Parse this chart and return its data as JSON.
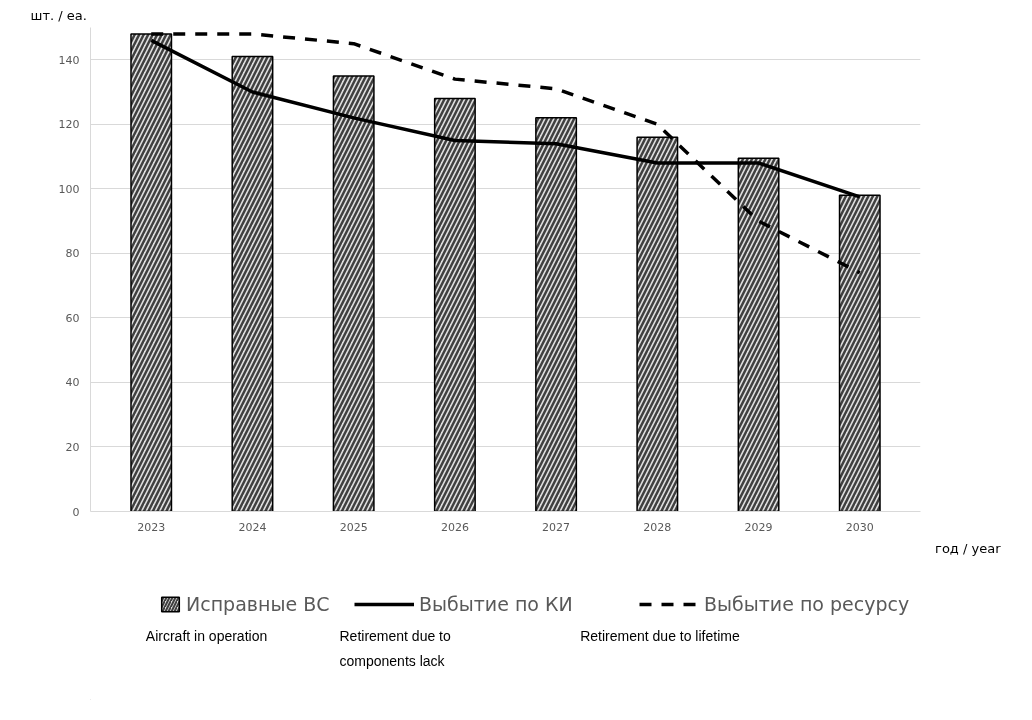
{
  "chart_data": {
    "type": "bar",
    "categories": [
      "2023",
      "2024",
      "2025",
      "2026",
      "2027",
      "2028",
      "2029",
      "2030"
    ],
    "xlabel": "год / year",
    "ylabel": "шт. / ea.",
    "series": [
      {
        "name": "Исправные ВС",
        "color": "#e0e0e0",
        "values": [
          148,
          141,
          135,
          128,
          122,
          116,
          109.5,
          98
        ]
      },
      {
        "name": "Выбытие по КИ",
        "type": "line",
        "line_style": "solid",
        "color": "#000000",
        "values": [
          146,
          130,
          122,
          115,
          114,
          108,
          108,
          97.5
        ]
      },
      {
        "name": "Выбытие по ресурсу",
        "type": "line",
        "line_style": "dashed",
        "color": "#000000",
        "values": [
          148,
          148,
          145,
          134,
          131,
          120,
          90,
          74
        ]
      }
    ],
    "annotations": [
      "Aircraft in operation",
      "Retirement due to components lack",
      "Retirement due to lifetime"
    ],
    "ylim": [
      0,
      150
    ],
    "yticks": [
      0,
      20,
      40,
      60,
      80,
      100,
      120,
      140
    ],
    "grid": "y",
    "legend": "bottom"
  }
}
